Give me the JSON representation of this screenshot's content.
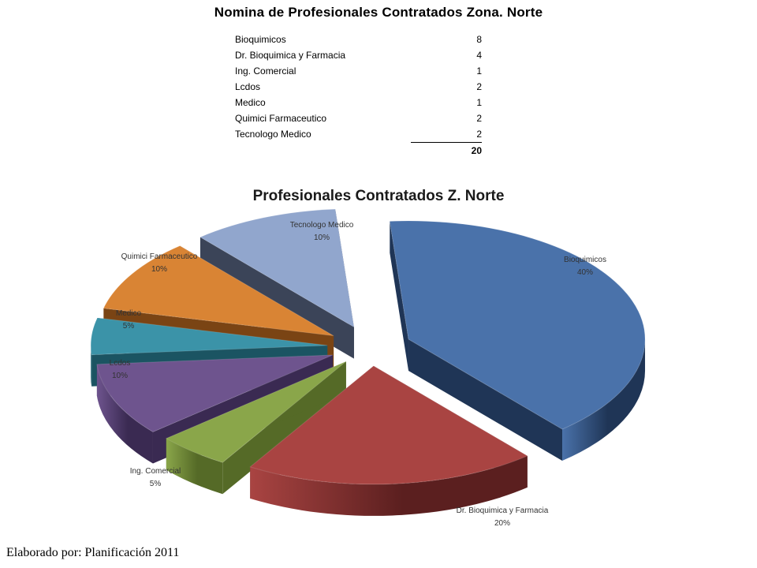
{
  "page_title": "Nomina de Profesionales Contratados Zona. Norte",
  "table": {
    "rows": [
      {
        "label": "Bioquimicos",
        "value": "8"
      },
      {
        "label": "Dr. Bioquimica y Farmacia",
        "value": "4"
      },
      {
        "label": "Ing. Comercial",
        "value": "1"
      },
      {
        "label": "Lcdos",
        "value": "2"
      },
      {
        "label": "Medico",
        "value": "1"
      },
      {
        "label": "Quimici Farmaceutico",
        "value": "2"
      },
      {
        "label": "Tecnologo Medico",
        "value": "2"
      }
    ],
    "total": "20"
  },
  "chart_data": {
    "type": "pie",
    "title": "Profesionales Contratados Z. Norte",
    "style": "3d exploded",
    "slices": [
      {
        "name": "Bioquimicos",
        "value": 8,
        "percent": "40%",
        "color": "#4a72aa",
        "dark": "#1f3556"
      },
      {
        "name": "Dr. Bioquimica y Farmacia",
        "value": 4,
        "percent": "20%",
        "color": "#a94442",
        "dark": "#5b1f1f"
      },
      {
        "name": "Ing. Comercial",
        "value": 1,
        "percent": "5%",
        "color": "#8aa64a",
        "dark": "#556a27"
      },
      {
        "name": "Lcdos",
        "value": 2,
        "percent": "10%",
        "color": "#6e548e",
        "dark": "#3a2a52"
      },
      {
        "name": "Medico",
        "value": 1,
        "percent": "5%",
        "color": "#3b93a8",
        "dark": "#1b5462"
      },
      {
        "name": "Quimici Farmaceutico",
        "value": 2,
        "percent": "10%",
        "color": "#d98434",
        "dark": "#7a4414"
      },
      {
        "name": "Tecnologo Medico",
        "value": 2,
        "percent": "10%",
        "color": "#91a6cd",
        "dark": "#3b4458"
      }
    ]
  },
  "footer": "Elaborado por: Planificación 2011"
}
